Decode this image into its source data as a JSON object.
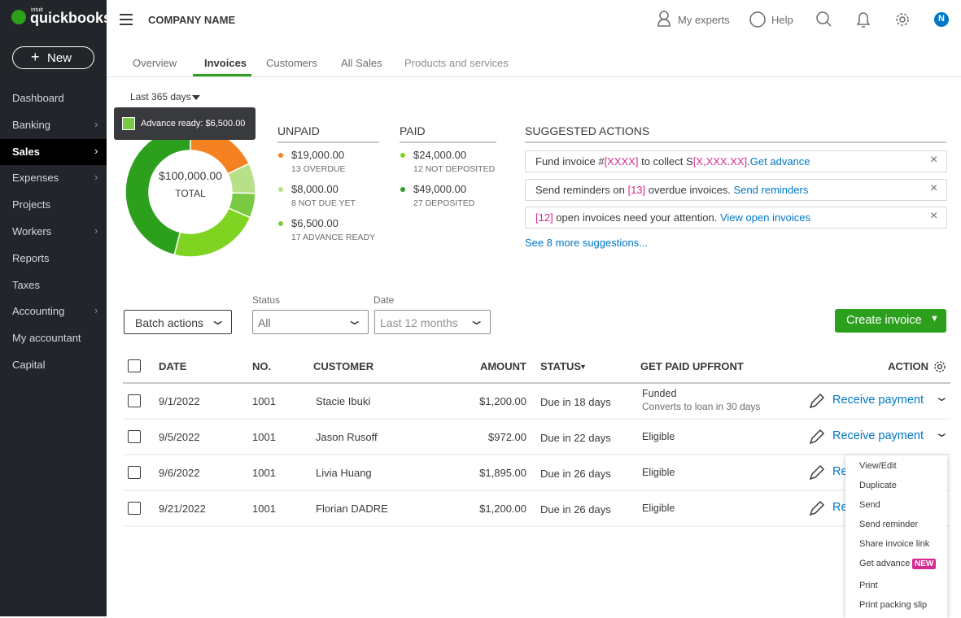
{
  "brand": {
    "small": "intuit",
    "name": "quickbooks"
  },
  "topbar": {
    "company": "COMPANY NAME",
    "experts": "My experts",
    "help": "Help",
    "avatar": "N"
  },
  "sidebar": {
    "new": "New",
    "active": 2,
    "items": [
      {
        "label": "Dashboard",
        "submenu": false
      },
      {
        "label": "Banking",
        "submenu": true
      },
      {
        "label": "Sales",
        "submenu": true
      },
      {
        "label": "Expenses",
        "submenu": true
      },
      {
        "label": "Projects",
        "submenu": false
      },
      {
        "label": "Workers",
        "submenu": true
      },
      {
        "label": "Reports",
        "submenu": false
      },
      {
        "label": "Taxes",
        "submenu": false
      },
      {
        "label": "Accounting",
        "submenu": true
      },
      {
        "label": "My accountant",
        "submenu": false
      },
      {
        "label": "Capital",
        "submenu": false
      }
    ]
  },
  "tabs": {
    "active": 1,
    "items": [
      "Overview",
      "Invoices",
      "Customers",
      "All Sales",
      "Products and services"
    ]
  },
  "period": "Last 365 days",
  "tooltip": "Advance ready: $6,500.00",
  "summary": {
    "total_label": "$100,000.00",
    "total_caption": "TOTAL",
    "unpaid": {
      "title": "UNPAID",
      "items": [
        {
          "value": 19000,
          "value_label": "$19,000.00",
          "caption": "13 OVERDUE",
          "color": "#f58220"
        },
        {
          "value": 8000,
          "value_label": "$8,000.00",
          "caption": "8 NOT DUE YET",
          "color": "#b7e089"
        },
        {
          "value": 6500,
          "value_label": "$6,500.00",
          "caption": "17 ADVANCE READY",
          "color": "#7ac943"
        }
      ]
    },
    "paid": {
      "title": "PAID",
      "items": [
        {
          "value": 24000,
          "value_label": "$24,000.00",
          "caption": "12 NOT DEPOSITED",
          "color": "#7fd321"
        },
        {
          "value": 49000,
          "value_label": "$49,000.00",
          "caption": "27 DEPOSITED",
          "color": "#2ca01c"
        }
      ]
    }
  },
  "suggestions": {
    "title": "SUGGESTED ACTIONS",
    "more": "See 8 more suggestions...",
    "items": [
      [
        {
          "text": "Fund invoice #",
          "style": "plain"
        },
        {
          "text": "[XXXX]",
          "style": "pink"
        },
        {
          "text": " to collect  S",
          "style": "plain"
        },
        {
          "text": "[X,XXX.XX]",
          "style": "pink"
        },
        {
          "text": ".",
          "style": "plain"
        },
        {
          "text": "Get advance",
          "style": "link"
        }
      ],
      [
        {
          "text": "Send reminders on ",
          "style": "plain"
        },
        {
          "text": "[13]",
          "style": "pink"
        },
        {
          "text": " overdue invoices. ",
          "style": "plain"
        },
        {
          "text": "Send reminders",
          "style": "link"
        }
      ],
      [
        {
          "text": "[12]",
          "style": "pink"
        },
        {
          "text": " open invoices need your attention. ",
          "style": "plain"
        },
        {
          "text": "View open invoices",
          "style": "link"
        }
      ]
    ]
  },
  "filters": {
    "batch": "Batch actions",
    "status_label": "Status",
    "status_value": "All",
    "date_label": "Date",
    "date_value": "Last 12 months",
    "create": "Create invoice"
  },
  "table": {
    "headers": [
      "DATE",
      "NO.",
      "CUSTOMER",
      "AMOUNT",
      "STATUS",
      "GET PAID UPFRONT",
      "ACTION"
    ],
    "action": "Receive payment",
    "rows": [
      {
        "date": "9/1/2022",
        "no": "1001",
        "customer": "Stacie Ibuki",
        "amount": "$1,200.00",
        "status": "Due in 18 days",
        "upfront": "Funded",
        "note": "Converts to loan in 30 days"
      },
      {
        "date": "9/5/2022",
        "no": "1001",
        "customer": "Jason Rusoff",
        "amount": "$972.00",
        "status": "Due in 22 days",
        "upfront": "Eligible"
      },
      {
        "date": "9/6/2022",
        "no": "1001",
        "customer": "Livia Huang",
        "amount": "$1,895.00",
        "status": "Due in 26 days",
        "upfront": "Eligible"
      },
      {
        "date": "9/21/2022",
        "no": "1001",
        "customer": "Florian DADRE",
        "amount": "$1,200.00",
        "status": "Due in 26 days",
        "upfront": "Eligible"
      }
    ]
  },
  "menu": {
    "badge": "NEW",
    "items": [
      "View/Edit",
      "Duplicate",
      "Send",
      "Send reminder",
      "Share invoice link",
      "Get advance",
      "Print",
      "Print packing slip"
    ]
  }
}
